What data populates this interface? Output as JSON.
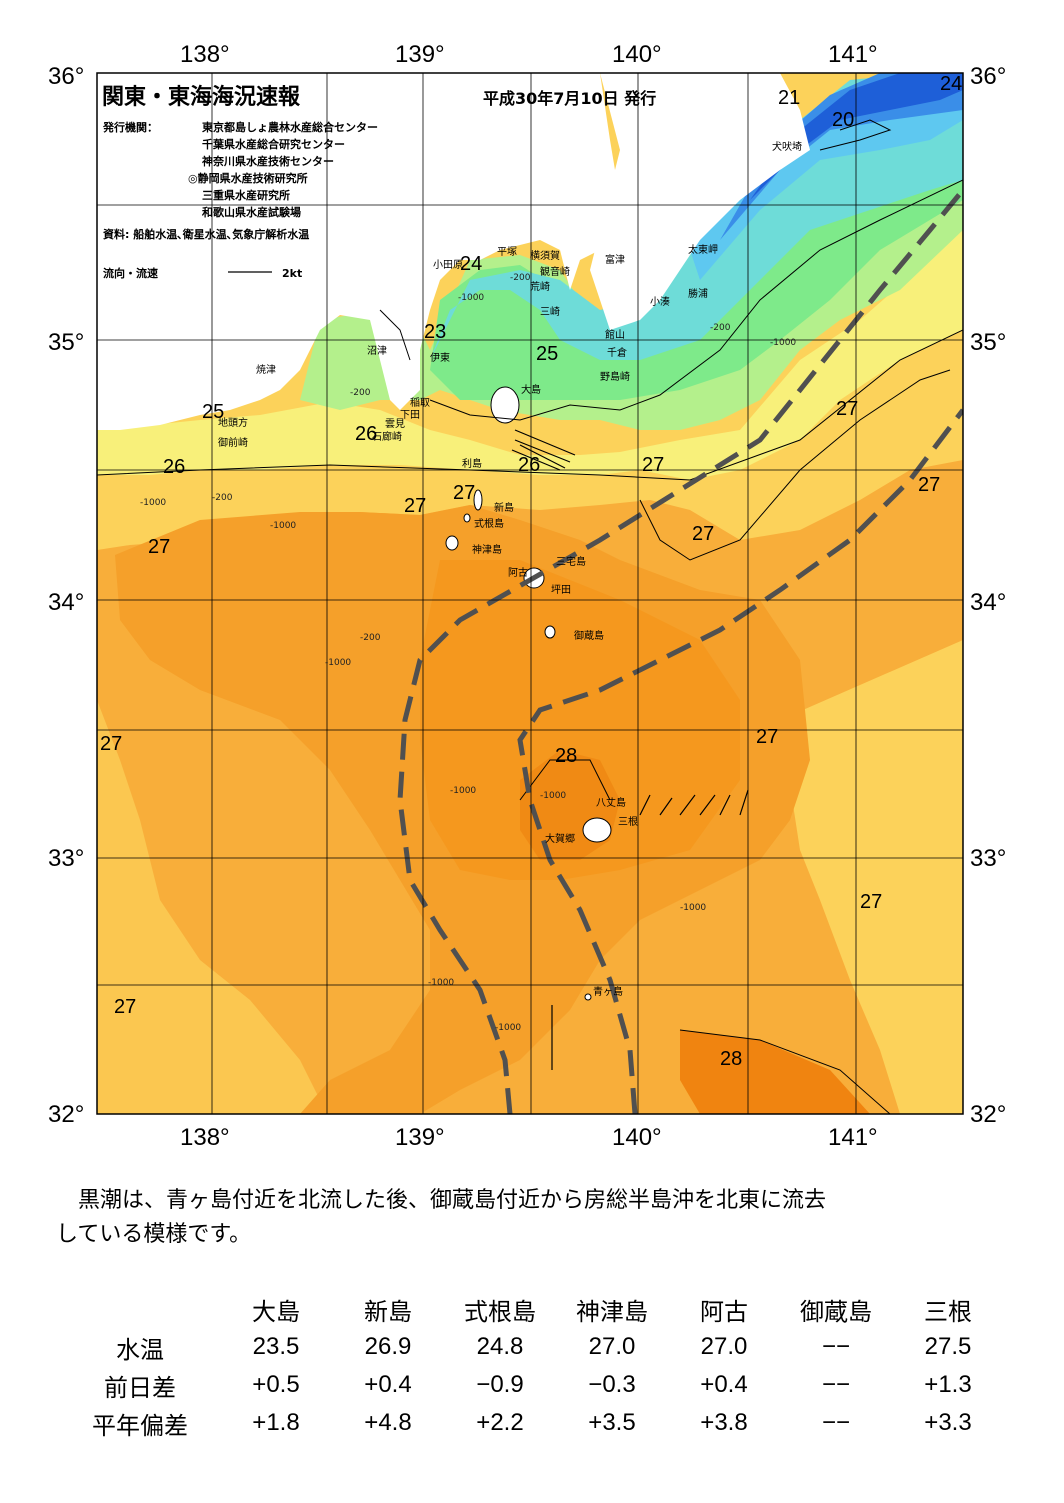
{
  "header": {
    "title": "関東・東海海況速報",
    "date": "平成30年7月10日 発行",
    "issuer_label": "発行機関：",
    "issuers": [
      "東京都島しょ農林水産総合センター",
      "千葉県水産総合研究センター",
      "神奈川県水産技術センター",
      "◎静岡県水産技術研究所",
      "三重県水産研究所",
      "和歌山県水産試験場"
    ],
    "source": "資料: 船舶水温､衛星水温､気象庁解析水温",
    "current_legend": "流向・流速",
    "current_scale": "2kt"
  },
  "axes": {
    "lon_labels": [
      "138°",
      "139°",
      "140°",
      "141°"
    ],
    "lat_labels": [
      "36°",
      "35°",
      "34°",
      "33°",
      "32°"
    ]
  },
  "isotherm_labels": [
    "21",
    "20",
    "24",
    "24",
    "23",
    "25",
    "25",
    "26",
    "26",
    "26",
    "27",
    "27",
    "27",
    "27",
    "27",
    "27",
    "27",
    "28",
    "27",
    "27",
    "27",
    "28",
    "27"
  ],
  "place_names": [
    "犬吠埼",
    "太東岬",
    "勝浦",
    "小湊",
    "富津",
    "平塚",
    "横須賀",
    "観音崎",
    "荒崎",
    "三崎",
    "館山",
    "千倉",
    "野島崎",
    "小田原",
    "沼津",
    "伊東",
    "焼津",
    "稲取",
    "下田",
    "雲見",
    "石廊崎",
    "御前崎",
    "地頭方",
    "大島",
    "利島",
    "新島",
    "式根島",
    "神津島",
    "三宅島",
    "阿古",
    "坪田",
    "御蔵島",
    "八丈島",
    "大賀郷",
    "三根",
    "青ヶ島"
  ],
  "depth_labels": [
    "-200",
    "-1000"
  ],
  "comment": [
    "　黒潮は、青ヶ島付近を北流した後、御蔵島付近から房総半島沖を北東に流去",
    "している模様です。"
  ],
  "table": {
    "columns": [
      "大島",
      "新島",
      "式根島",
      "神津島",
      "阿古",
      "御蔵島",
      "三根"
    ],
    "rows": [
      {
        "label": "水温",
        "values": [
          "23.5",
          "26.9",
          "24.8",
          "27.0",
          "27.0",
          "−−",
          "27.5"
        ]
      },
      {
        "label": "前日差",
        "values": [
          "+0.5",
          "+0.4",
          "−0.9",
          "−0.3",
          "+0.4",
          "−−",
          "+1.3"
        ]
      },
      {
        "label": "平年偏差",
        "values": [
          "+1.8",
          "+4.8",
          "+2.2",
          "+3.5",
          "+3.8",
          "−−",
          "+3.3"
        ]
      }
    ]
  },
  "colors": {
    "deep_blue": "#1e5fd8",
    "blue": "#3a8ee8",
    "light_blue": "#5ec8f0",
    "cyan": "#6edcd8",
    "green": "#7eea8a",
    "light_green": "#b4f08c",
    "yellow": "#f8f07a",
    "light_orange": "#fcd25a",
    "orange": "#f8ae3a",
    "dark_orange": "#f5981e",
    "deep_orange": "#f08410",
    "kuroshio": "#505050"
  }
}
